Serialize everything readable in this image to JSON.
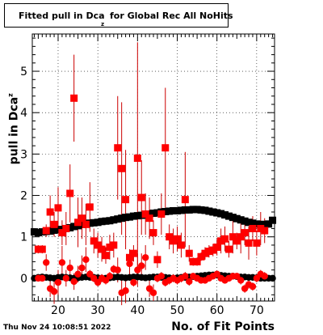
{
  "title": {
    "main": "Fitted pull in Dca",
    "sub": "z",
    "rest": "for Global Rec All NoHits"
  },
  "footer": {
    "timestamp": "Thu Nov 24 10:08:51 2022"
  },
  "chart_data": {
    "type": "scatter",
    "title": "Fitted pull in Dca_z for Global Rec All NoHits",
    "xlabel": "No. of Fit Points",
    "ylabel": "pull in Dca",
    "ylabel_sub": "z",
    "xlim": [
      13.5,
      74.5
    ],
    "ylim": [
      -0.55,
      5.9
    ],
    "xticks": [
      20,
      30,
      40,
      50,
      60,
      70
    ],
    "yticks": [
      0,
      1,
      2,
      3,
      4,
      5
    ],
    "grid": true,
    "colors": {
      "sigma": "#000000",
      "red_series": "#ff0000",
      "errorbar": "#cc0000"
    },
    "series": [
      {
        "marker": "square",
        "color": "#000000",
        "x": [
          14,
          15,
          16,
          17,
          18,
          19,
          20,
          21,
          22,
          23,
          24,
          25,
          26,
          27,
          28,
          29,
          30,
          31,
          32,
          33,
          34,
          35,
          36,
          37,
          38,
          39,
          40,
          41,
          42,
          43,
          44,
          45,
          46,
          47,
          48,
          49,
          50,
          51,
          52,
          53,
          54,
          55,
          56,
          57,
          58,
          59,
          60,
          61,
          62,
          63,
          64,
          65,
          66,
          67,
          68,
          69,
          70,
          71,
          72,
          73,
          74
        ],
        "y": [
          1.12,
          1.1,
          1.12,
          1.13,
          1.14,
          1.16,
          1.17,
          1.18,
          1.2,
          1.22,
          1.25,
          1.27,
          1.3,
          1.31,
          1.33,
          1.34,
          1.35,
          1.37,
          1.38,
          1.39,
          1.41,
          1.43,
          1.45,
          1.47,
          1.48,
          1.5,
          1.51,
          1.52,
          1.54,
          1.55,
          1.57,
          1.58,
          1.6,
          1.61,
          1.62,
          1.63,
          1.63,
          1.64,
          1.65,
          1.65,
          1.66,
          1.66,
          1.65,
          1.64,
          1.62,
          1.6,
          1.58,
          1.56,
          1.53,
          1.5,
          1.47,
          1.44,
          1.41,
          1.38,
          1.35,
          1.33,
          1.31,
          1.3,
          1.3,
          1.31,
          1.4
        ]
      },
      {
        "marker": "square",
        "color": "#ff0000",
        "x": [
          15,
          16,
          17,
          18,
          19,
          20,
          21,
          22,
          23,
          24,
          25,
          26,
          27,
          28,
          29,
          30,
          31,
          32,
          33,
          34,
          35,
          36,
          37,
          38,
          39,
          40,
          41,
          42,
          43,
          44,
          45,
          46,
          47,
          48,
          49,
          50,
          51,
          52,
          53,
          54,
          55,
          56,
          57,
          58,
          59,
          60,
          61,
          62,
          63,
          64,
          65,
          66,
          67,
          68,
          69,
          70,
          71,
          72
        ],
        "y": [
          0.7,
          0.7,
          1.15,
          1.6,
          1.3,
          1.7,
          1.1,
          1.2,
          2.05,
          4.35,
          1.35,
          1.45,
          1.3,
          1.72,
          0.9,
          0.8,
          0.7,
          0.55,
          0.75,
          0.8,
          3.15,
          2.65,
          1.9,
          0.5,
          0.6,
          2.9,
          1.95,
          1.55,
          1.45,
          1.1,
          0.45,
          1.55,
          3.15,
          1.0,
          0.9,
          0.95,
          0.8,
          1.9,
          0.6,
          0.4,
          0.4,
          0.52,
          0.6,
          0.65,
          0.68,
          0.75,
          0.9,
          0.95,
          0.7,
          1.0,
          0.9,
          1.0,
          1.1,
          0.85,
          1.2,
          0.85,
          1.2,
          1.15
        ],
        "err": [
          0.1,
          0.1,
          0.15,
          0.4,
          0.3,
          0.5,
          0.3,
          0.4,
          0.7,
          1.05,
          0.6,
          0.5,
          0.5,
          0.6,
          0.3,
          0.3,
          0.3,
          0.2,
          0.3,
          0.3,
          1.25,
          1.6,
          1.2,
          0.2,
          0.2,
          2.8,
          0.9,
          0.5,
          0.5,
          0.3,
          0.2,
          0.5,
          1.45,
          0.3,
          0.3,
          0.3,
          0.3,
          1.15,
          0.2,
          0.1,
          0.1,
          0.1,
          0.15,
          0.15,
          0.15,
          0.2,
          0.3,
          0.3,
          0.2,
          0.4,
          0.2,
          0.4,
          0.3,
          0.4,
          0.3,
          0.3,
          0.4,
          0.3
        ]
      },
      {
        "marker": "circle",
        "color": "#000000",
        "x": [
          14,
          15,
          16,
          17,
          18,
          19,
          20,
          21,
          22,
          23,
          24,
          25,
          26,
          27,
          28,
          29,
          30,
          31,
          32,
          33,
          34,
          35,
          36,
          37,
          38,
          39,
          40,
          41,
          42,
          43,
          44,
          45,
          46,
          47,
          48,
          49,
          50,
          51,
          52,
          53,
          54,
          55,
          56,
          57,
          58,
          59,
          60,
          61,
          62,
          63,
          64,
          65,
          66,
          67,
          68,
          69,
          70,
          71,
          72,
          73,
          74
        ],
        "y": [
          0.0,
          0.02,
          0.03,
          0.02,
          0.01,
          0.0,
          0.02,
          0.03,
          0.02,
          0.01,
          0.0,
          0.01,
          0.02,
          0.03,
          0.02,
          0.02,
          0.01,
          0.0,
          0.0,
          0.01,
          0.02,
          0.03,
          0.02,
          0.01,
          0.02,
          0.03,
          0.03,
          0.02,
          0.01,
          0.02,
          0.03,
          0.03,
          0.02,
          0.02,
          0.01,
          0.0,
          0.01,
          0.02,
          0.02,
          0.03,
          0.04,
          0.05,
          0.06,
          0.07,
          0.08,
          0.08,
          0.08,
          0.07,
          0.06,
          0.05,
          0.05,
          0.04,
          0.03,
          0.03,
          0.02,
          0.02,
          0.01,
          0.0,
          0.0,
          0.0,
          0.0
        ]
      },
      {
        "marker": "circle",
        "color": "#ff0000",
        "x": [
          15,
          16,
          17,
          18,
          19,
          20,
          21,
          22,
          23,
          24,
          25,
          26,
          27,
          28,
          29,
          30,
          31,
          32,
          33,
          34,
          35,
          36,
          37,
          38,
          39,
          40,
          41,
          42,
          43,
          44,
          45,
          46,
          47,
          48,
          49,
          50,
          51,
          52,
          53,
          54,
          55,
          56,
          57,
          58,
          59,
          60,
          61,
          62,
          63,
          64,
          65,
          66,
          67,
          68,
          69,
          70,
          71,
          72
        ],
        "y": [
          0.0,
          0.0,
          0.38,
          -0.25,
          -0.32,
          -0.1,
          0.38,
          0.0,
          0.25,
          -0.08,
          0.1,
          0.25,
          0.45,
          0.1,
          0.0,
          -0.1,
          0.0,
          -0.05,
          0.05,
          0.22,
          0.2,
          -0.35,
          -0.3,
          0.35,
          -0.1,
          0.2,
          0.3,
          0.5,
          -0.25,
          -0.35,
          0.0,
          0.05,
          -0.1,
          -0.05,
          0.0,
          -0.05,
          0.0,
          0.05,
          -0.08,
          0.05,
          0.0,
          -0.05,
          -0.05,
          0.0,
          0.05,
          0.1,
          0.0,
          -0.05,
          0.0,
          0.05,
          0.05,
          -0.05,
          -0.25,
          -0.15,
          -0.2,
          0.0,
          0.1,
          0.05
        ],
        "err": [
          0.05,
          0.05,
          0.2,
          0.2,
          0.3,
          0.3,
          0.4,
          0.2,
          0.2,
          0.2,
          0.2,
          0.3,
          0.3,
          0.1,
          0.1,
          0.1,
          0.1,
          0.1,
          0.1,
          0.1,
          0.3,
          0.3,
          0.3,
          0.3,
          0.1,
          0.4,
          0.3,
          0.3,
          0.2,
          0.2,
          0.1,
          0.1,
          0.1,
          0.1,
          0.1,
          0.1,
          0.1,
          0.1,
          0.1,
          0.05,
          0.05,
          0.05,
          0.05,
          0.05,
          0.05,
          0.05,
          0.05,
          0.05,
          0.05,
          0.05,
          0.05,
          0.1,
          0.1,
          0.1,
          0.1,
          0.1,
          0.1,
          0.1
        ]
      }
    ]
  }
}
